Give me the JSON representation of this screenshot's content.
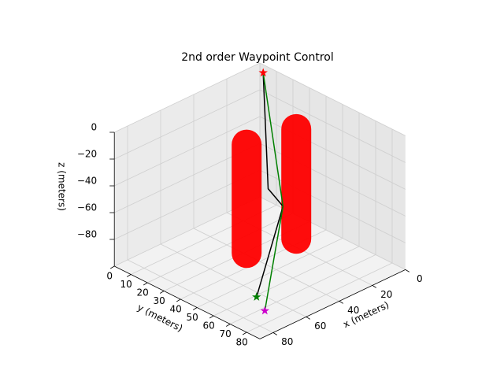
{
  "chart_data": {
    "type": "line3d",
    "title": "2nd order Waypoint Control",
    "xlabel": "x (meters)",
    "ylabel": "y (meters)",
    "zlabel": "z (meters)",
    "xlim": [
      0,
      88
    ],
    "ylim": [
      0,
      88
    ],
    "zlim": [
      -100,
      0
    ],
    "xticks": [
      0,
      20,
      40,
      60,
      80
    ],
    "yticks": [
      0,
      10,
      20,
      30,
      40,
      50,
      60,
      70,
      80
    ],
    "zticks": [
      {
        "value": 0,
        "label": "0"
      },
      {
        "value": -20,
        "label": "−20"
      },
      {
        "value": -40,
        "label": "−40"
      },
      {
        "value": -60,
        "label": "−60"
      },
      {
        "value": -80,
        "label": "−80"
      }
    ],
    "grid": true,
    "obstacles": [
      {
        "x": 23,
        "y": 45,
        "z": [
          -90,
          -8
        ],
        "color": "#ff0000"
      },
      {
        "x": 48,
        "y": 40,
        "z": [
          -89,
          -8
        ],
        "color": "#ff0000"
      }
    ],
    "series": [
      {
        "color": "#000000",
        "x": [
          5,
          38,
          36,
          63
        ],
        "y": [
          7,
          43,
          50,
          61
        ],
        "z": [
          0,
          -45,
          -55,
          -100
        ]
      },
      {
        "color": "#008000",
        "x": [
          5,
          36,
          69
        ],
        "y": [
          7,
          50,
          72
        ],
        "z": [
          0,
          -55,
          -100
        ]
      }
    ],
    "waypoints": [
      {
        "x": 5,
        "y": 7,
        "z": 0,
        "color": "#ff0000"
      },
      {
        "x": 63,
        "y": 61,
        "z": -100,
        "color": "#008000"
      },
      {
        "x": 69,
        "y": 72,
        "z": -100,
        "color": "#cc00cc"
      }
    ]
  }
}
